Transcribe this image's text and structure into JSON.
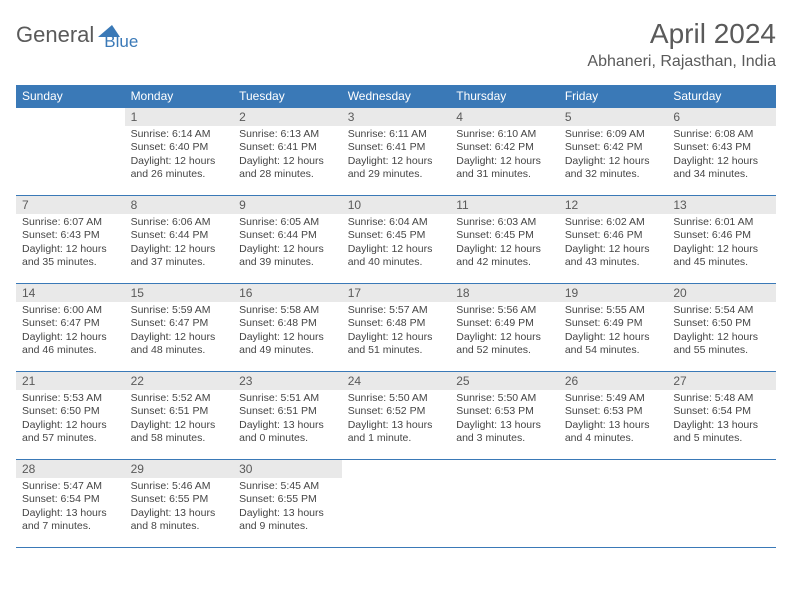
{
  "logo": {
    "part1": "General",
    "part2": "Blue"
  },
  "title": "April 2024",
  "location": "Abhaneri, Rajasthan, India",
  "colors": {
    "brand": "#3a79b7",
    "textGray": "#5a5a5a",
    "cellHeader": "#e9e9e9"
  },
  "weekdays": [
    "Sunday",
    "Monday",
    "Tuesday",
    "Wednesday",
    "Thursday",
    "Friday",
    "Saturday"
  ],
  "weeks": [
    [
      null,
      {
        "n": "1",
        "sr": "6:14 AM",
        "ss": "6:40 PM",
        "dl": "12 hours and 26 minutes."
      },
      {
        "n": "2",
        "sr": "6:13 AM",
        "ss": "6:41 PM",
        "dl": "12 hours and 28 minutes."
      },
      {
        "n": "3",
        "sr": "6:11 AM",
        "ss": "6:41 PM",
        "dl": "12 hours and 29 minutes."
      },
      {
        "n": "4",
        "sr": "6:10 AM",
        "ss": "6:42 PM",
        "dl": "12 hours and 31 minutes."
      },
      {
        "n": "5",
        "sr": "6:09 AM",
        "ss": "6:42 PM",
        "dl": "12 hours and 32 minutes."
      },
      {
        "n": "6",
        "sr": "6:08 AM",
        "ss": "6:43 PM",
        "dl": "12 hours and 34 minutes."
      }
    ],
    [
      {
        "n": "7",
        "sr": "6:07 AM",
        "ss": "6:43 PM",
        "dl": "12 hours and 35 minutes."
      },
      {
        "n": "8",
        "sr": "6:06 AM",
        "ss": "6:44 PM",
        "dl": "12 hours and 37 minutes."
      },
      {
        "n": "9",
        "sr": "6:05 AM",
        "ss": "6:44 PM",
        "dl": "12 hours and 39 minutes."
      },
      {
        "n": "10",
        "sr": "6:04 AM",
        "ss": "6:45 PM",
        "dl": "12 hours and 40 minutes."
      },
      {
        "n": "11",
        "sr": "6:03 AM",
        "ss": "6:45 PM",
        "dl": "12 hours and 42 minutes."
      },
      {
        "n": "12",
        "sr": "6:02 AM",
        "ss": "6:46 PM",
        "dl": "12 hours and 43 minutes."
      },
      {
        "n": "13",
        "sr": "6:01 AM",
        "ss": "6:46 PM",
        "dl": "12 hours and 45 minutes."
      }
    ],
    [
      {
        "n": "14",
        "sr": "6:00 AM",
        "ss": "6:47 PM",
        "dl": "12 hours and 46 minutes."
      },
      {
        "n": "15",
        "sr": "5:59 AM",
        "ss": "6:47 PM",
        "dl": "12 hours and 48 minutes."
      },
      {
        "n": "16",
        "sr": "5:58 AM",
        "ss": "6:48 PM",
        "dl": "12 hours and 49 minutes."
      },
      {
        "n": "17",
        "sr": "5:57 AM",
        "ss": "6:48 PM",
        "dl": "12 hours and 51 minutes."
      },
      {
        "n": "18",
        "sr": "5:56 AM",
        "ss": "6:49 PM",
        "dl": "12 hours and 52 minutes."
      },
      {
        "n": "19",
        "sr": "5:55 AM",
        "ss": "6:49 PM",
        "dl": "12 hours and 54 minutes."
      },
      {
        "n": "20",
        "sr": "5:54 AM",
        "ss": "6:50 PM",
        "dl": "12 hours and 55 minutes."
      }
    ],
    [
      {
        "n": "21",
        "sr": "5:53 AM",
        "ss": "6:50 PM",
        "dl": "12 hours and 57 minutes."
      },
      {
        "n": "22",
        "sr": "5:52 AM",
        "ss": "6:51 PM",
        "dl": "12 hours and 58 minutes."
      },
      {
        "n": "23",
        "sr": "5:51 AM",
        "ss": "6:51 PM",
        "dl": "13 hours and 0 minutes."
      },
      {
        "n": "24",
        "sr": "5:50 AM",
        "ss": "6:52 PM",
        "dl": "13 hours and 1 minute."
      },
      {
        "n": "25",
        "sr": "5:50 AM",
        "ss": "6:53 PM",
        "dl": "13 hours and 3 minutes."
      },
      {
        "n": "26",
        "sr": "5:49 AM",
        "ss": "6:53 PM",
        "dl": "13 hours and 4 minutes."
      },
      {
        "n": "27",
        "sr": "5:48 AM",
        "ss": "6:54 PM",
        "dl": "13 hours and 5 minutes."
      }
    ],
    [
      {
        "n": "28",
        "sr": "5:47 AM",
        "ss": "6:54 PM",
        "dl": "13 hours and 7 minutes."
      },
      {
        "n": "29",
        "sr": "5:46 AM",
        "ss": "6:55 PM",
        "dl": "13 hours and 8 minutes."
      },
      {
        "n": "30",
        "sr": "5:45 AM",
        "ss": "6:55 PM",
        "dl": "13 hours and 9 minutes."
      },
      null,
      null,
      null,
      null
    ]
  ]
}
